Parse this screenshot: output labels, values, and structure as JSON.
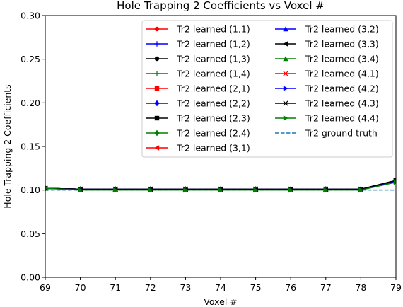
{
  "chart_data": {
    "type": "line",
    "title": "Hole Trapping 2 Coefficients vs Voxel #",
    "xlabel": "Voxel #",
    "ylabel": "Hole Trapping 2 Coefficients",
    "xlim": [
      69,
      79
    ],
    "ylim": [
      0.0,
      0.3
    ],
    "xticks": [
      "69",
      "70",
      "71",
      "72",
      "73",
      "74",
      "75",
      "76",
      "77",
      "78",
      "79"
    ],
    "yticks": [
      "0.00",
      "0.05",
      "0.10",
      "0.15",
      "0.20",
      "0.25",
      "0.30"
    ],
    "grid": false,
    "legend_position": "upper right",
    "x": [
      69,
      70,
      71,
      72,
      73,
      74,
      75,
      76,
      77,
      78,
      79
    ],
    "series": [
      {
        "name": "Tr2 learned (1,1)",
        "color": "#ff0000",
        "marker": "circle",
        "values": [
          0.102,
          0.101,
          0.101,
          0.101,
          0.101,
          0.101,
          0.101,
          0.101,
          0.101,
          0.101,
          0.11
        ]
      },
      {
        "name": "Tr2 learned (1,2)",
        "color": "#0000ff",
        "marker": "plus",
        "values": [
          0.102,
          0.101,
          0.101,
          0.101,
          0.101,
          0.101,
          0.101,
          0.101,
          0.101,
          0.101,
          0.11
        ]
      },
      {
        "name": "Tr2 learned (1,3)",
        "color": "#000000",
        "marker": "circle",
        "values": [
          0.102,
          0.101,
          0.101,
          0.101,
          0.101,
          0.101,
          0.101,
          0.101,
          0.101,
          0.101,
          0.111
        ]
      },
      {
        "name": "Tr2 learned (1,4)",
        "color": "#008000",
        "marker": "plus",
        "values": [
          0.102,
          0.101,
          0.101,
          0.101,
          0.101,
          0.101,
          0.101,
          0.101,
          0.101,
          0.101,
          0.11
        ]
      },
      {
        "name": "Tr2 learned (2,1)",
        "color": "#ff0000",
        "marker": "square",
        "values": [
          0.102,
          0.101,
          0.101,
          0.101,
          0.101,
          0.101,
          0.101,
          0.101,
          0.101,
          0.101,
          0.11
        ]
      },
      {
        "name": "Tr2 learned (2,2)",
        "color": "#0000ff",
        "marker": "diamond",
        "values": [
          0.102,
          0.101,
          0.101,
          0.101,
          0.101,
          0.101,
          0.101,
          0.101,
          0.101,
          0.101,
          0.11
        ]
      },
      {
        "name": "Tr2 learned (2,3)",
        "color": "#000000",
        "marker": "square",
        "values": [
          0.102,
          0.101,
          0.101,
          0.101,
          0.101,
          0.101,
          0.101,
          0.101,
          0.101,
          0.101,
          0.111
        ]
      },
      {
        "name": "Tr2 learned (2,4)",
        "color": "#008000",
        "marker": "diamond",
        "values": [
          0.102,
          0.101,
          0.101,
          0.101,
          0.101,
          0.101,
          0.101,
          0.101,
          0.101,
          0.101,
          0.11
        ]
      },
      {
        "name": "Tr2 learned (3,1)",
        "color": "#ff0000",
        "marker": "triangle-left",
        "values": [
          0.102,
          0.101,
          0.101,
          0.101,
          0.101,
          0.101,
          0.101,
          0.101,
          0.101,
          0.101,
          0.11
        ]
      },
      {
        "name": "Tr2 learned (3,2)",
        "color": "#0000ff",
        "marker": "triangle-up",
        "values": [
          0.102,
          0.101,
          0.101,
          0.101,
          0.101,
          0.101,
          0.101,
          0.101,
          0.101,
          0.101,
          0.11
        ]
      },
      {
        "name": "Tr2 learned (3,3)",
        "color": "#000000",
        "marker": "triangle-left",
        "values": [
          0.102,
          0.101,
          0.101,
          0.101,
          0.101,
          0.101,
          0.101,
          0.101,
          0.101,
          0.101,
          0.111
        ]
      },
      {
        "name": "Tr2 learned (3,4)",
        "color": "#008000",
        "marker": "triangle-up",
        "values": [
          0.102,
          0.101,
          0.101,
          0.101,
          0.101,
          0.101,
          0.101,
          0.101,
          0.101,
          0.101,
          0.11
        ]
      },
      {
        "name": "Tr2 learned (4,1)",
        "color": "#ff0000",
        "marker": "x",
        "values": [
          0.102,
          0.101,
          0.101,
          0.101,
          0.101,
          0.101,
          0.101,
          0.101,
          0.101,
          0.101,
          0.11
        ]
      },
      {
        "name": "Tr2 learned (4,2)",
        "color": "#0000ff",
        "marker": "triangle-right",
        "values": [
          0.102,
          0.101,
          0.101,
          0.101,
          0.101,
          0.101,
          0.101,
          0.101,
          0.101,
          0.101,
          0.11
        ]
      },
      {
        "name": "Tr2 learned (4,3)",
        "color": "#000000",
        "marker": "x",
        "values": [
          0.102,
          0.101,
          0.101,
          0.101,
          0.101,
          0.101,
          0.101,
          0.101,
          0.101,
          0.101,
          0.111
        ]
      },
      {
        "name": "Tr2 learned (4,4)",
        "color": "#008000",
        "marker": "triangle-right",
        "values": [
          0.102,
          0.1,
          0.1,
          0.1,
          0.1,
          0.1,
          0.1,
          0.1,
          0.1,
          0.1,
          0.109
        ]
      },
      {
        "name": "Tr2 ground truth",
        "color": "#1f77b4",
        "marker": "none",
        "linestyle": "dashed",
        "values": [
          0.1,
          0.1,
          0.1,
          0.1,
          0.1,
          0.1,
          0.1,
          0.1,
          0.1,
          0.1,
          0.1
        ]
      }
    ]
  }
}
